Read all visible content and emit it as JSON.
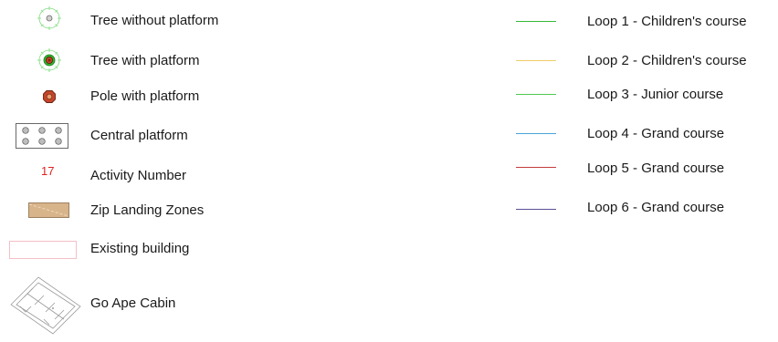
{
  "legend": {
    "symbols": [
      {
        "label": "Tree without platform",
        "icon": "tree-without-platform-icon"
      },
      {
        "label": "Tree with platform",
        "icon": "tree-with-platform-icon"
      },
      {
        "label": "Pole with platform",
        "icon": "pole-with-platform-icon"
      },
      {
        "label": "Central platform",
        "icon": "central-platform-icon"
      },
      {
        "label": "Activity Number",
        "icon": "activity-number-marker",
        "example": "17"
      },
      {
        "label": "Zip Landing Zones",
        "icon": "zip-landing-zone-icon"
      },
      {
        "label": "Existing building",
        "icon": "existing-building-icon"
      },
      {
        "label": "Go Ape Cabin",
        "icon": "cabin-plan-icon"
      }
    ],
    "loops": [
      {
        "label": "Loop 1 - Children's course",
        "color": "#36b936"
      },
      {
        "label": "Loop 2 - Children's course",
        "color": "#f0cc6a"
      },
      {
        "label": "Loop 3 - Junior course",
        "color": "#4fc84f"
      },
      {
        "label": "Loop 4 - Grand course",
        "color": "#4aa3d6"
      },
      {
        "label": "Loop 5 - Grand course",
        "color": "#c43c3c"
      },
      {
        "label": "Loop 6 - Grand course",
        "color": "#5e5096"
      }
    ],
    "colors": {
      "activity_number": "#e02020",
      "landing_zone_fill": "#d8b48a",
      "building_outline": "#f2b8c0"
    }
  }
}
